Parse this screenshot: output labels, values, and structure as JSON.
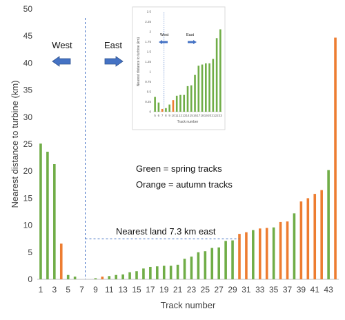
{
  "chart_data": [
    {
      "type": "bar",
      "xlabel": "Track number",
      "ylabel": "Nearest distance to turbine (km)",
      "ylim": [
        0,
        50
      ],
      "yticks": [
        0,
        5,
        10,
        15,
        20,
        25,
        30,
        35,
        40,
        45,
        50
      ],
      "xticks": [
        1,
        3,
        5,
        7,
        9,
        11,
        13,
        15,
        17,
        19,
        21,
        23,
        25,
        27,
        29,
        31,
        33,
        35,
        37,
        39,
        41,
        43
      ],
      "grid": false,
      "x": [
        1,
        2,
        3,
        4,
        5,
        6,
        7,
        8,
        9,
        10,
        11,
        12,
        13,
        14,
        15,
        16,
        17,
        18,
        19,
        20,
        21,
        22,
        23,
        24,
        25,
        26,
        27,
        28,
        29,
        30,
        31,
        32,
        33,
        34,
        35,
        36,
        37,
        38,
        39,
        40,
        41,
        42,
        43,
        44
      ],
      "values": [
        25.1,
        23.6,
        21.3,
        6.6,
        0.8,
        0.5,
        0,
        0,
        0.2,
        0.5,
        0.6,
        0.8,
        0.9,
        1.3,
        1.5,
        2.0,
        2.3,
        2.4,
        2.5,
        2.5,
        2.7,
        3.8,
        4.2,
        5.0,
        5.2,
        5.8,
        5.9,
        7.1,
        7.2,
        8.4,
        8.7,
        9.1,
        9.4,
        9.5,
        9.6,
        10.6,
        10.7,
        12.2,
        14.4,
        15.0,
        15.8,
        16.5,
        20.2,
        44.7
      ],
      "season": [
        "spring",
        "spring",
        "spring",
        "autumn",
        "spring",
        "spring",
        "",
        "",
        "spring",
        "autumn",
        "spring",
        "spring",
        "spring",
        "spring",
        "spring",
        "spring",
        "spring",
        "spring",
        "spring",
        "spring",
        "spring",
        "spring",
        "spring",
        "spring",
        "spring",
        "spring",
        "spring",
        "spring",
        "spring",
        "autumn",
        "autumn",
        "spring",
        "autumn",
        "autumn",
        "spring",
        "autumn",
        "autumn",
        "spring",
        "autumn",
        "autumn",
        "autumn",
        "autumn",
        "spring",
        "autumn"
      ],
      "colors": {
        "spring": "#70AD47",
        "autumn": "#ED7D31"
      },
      "annotations": {
        "west": "West",
        "east": "East",
        "legend_green": "Green = spring tracks",
        "legend_orange": "Orange = autumn tracks",
        "nearest_land": "Nearest land 7.3 km east"
      },
      "divider_x": 7.5
    },
    {
      "type": "bar",
      "xlabel": "Track number",
      "ylabel": "Nearest distance to turbine (km)",
      "ylim": [
        0,
        2.5
      ],
      "yticks": [
        0,
        0.25,
        0.5,
        0.75,
        1,
        1.25,
        1.5,
        1.75,
        2,
        2.25,
        2.5
      ],
      "x": [
        5,
        6,
        7,
        8,
        9,
        10,
        11,
        12,
        13,
        14,
        15,
        16,
        17,
        18,
        19,
        20,
        21,
        22,
        23
      ],
      "values": [
        0.37,
        0.23,
        0.07,
        0.09,
        0.18,
        0.29,
        0.4,
        0.42,
        0.42,
        0.64,
        0.66,
        0.92,
        1.15,
        1.18,
        1.21,
        1.21,
        1.32,
        1.84,
        2.06
      ],
      "season": [
        "spring",
        "spring",
        "autumn",
        "spring",
        "spring",
        "autumn",
        "spring",
        "spring",
        "spring",
        "spring",
        "spring",
        "spring",
        "spring",
        "spring",
        "spring",
        "spring",
        "spring",
        "spring",
        "spring"
      ],
      "annotations": {
        "west": "West",
        "east": "East"
      },
      "divider_x": 7.5
    }
  ]
}
